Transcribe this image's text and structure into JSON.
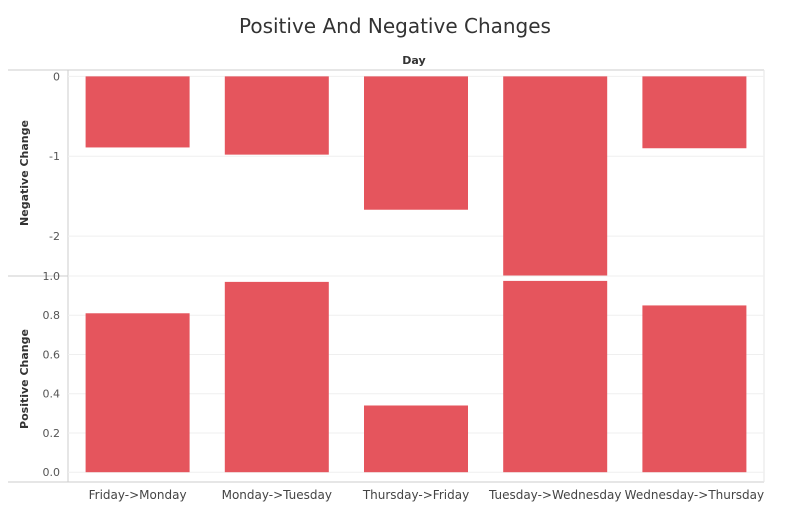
{
  "title": "Positive And Negative Changes",
  "header": "Day",
  "chart_data": [
    {
      "type": "bar",
      "ylabel": "Negative Change",
      "categories": [
        "Friday->Monday",
        "Monday->Tuesday",
        "Thursday->Friday",
        "Tuesday->Wednesday",
        "Wednesday->Thursday"
      ],
      "values": [
        -0.89,
        -0.98,
        -1.67,
        -2.5,
        -0.9
      ],
      "yticks": [
        0,
        -1,
        -2
      ],
      "ylim": [
        -2.5,
        0.08
      ],
      "color": "#e5555d"
    },
    {
      "type": "bar",
      "ylabel": "Positive Change",
      "categories": [
        "Friday->Monday",
        "Monday->Tuesday",
        "Thursday->Friday",
        "Tuesday->Wednesday",
        "Wednesday->Thursday"
      ],
      "values": [
        0.81,
        0.97,
        0.34,
        0.975,
        0.85
      ],
      "yticks": [
        "1.0",
        "0.8",
        "0.6",
        "0.4",
        "0.2",
        "0.0"
      ],
      "ylim": [
        -0.05,
        1.0
      ],
      "color": "#e5555d"
    }
  ]
}
